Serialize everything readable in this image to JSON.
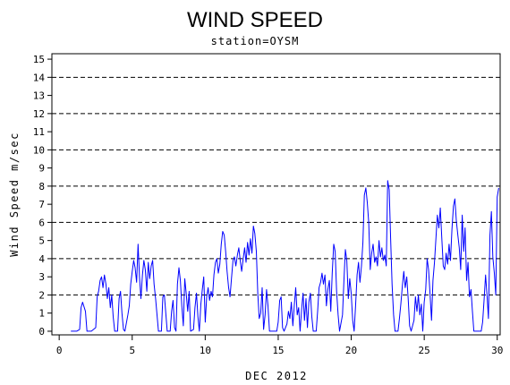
{
  "chart_data": {
    "type": "line",
    "title": "WIND SPEED",
    "subtitle": "station=OYSM",
    "xlabel": "DEC 2012",
    "ylabel": "Wind Speed m/sec",
    "xlim": [
      -0.5,
      30.2
    ],
    "ylim": [
      -0.2,
      15.3
    ],
    "x_ticks": [
      0,
      5,
      10,
      15,
      20,
      25,
      30
    ],
    "x_tick_labels": [
      "0",
      "5",
      "10",
      "15",
      "20",
      "25",
      "30"
    ],
    "y_ticks": [
      0,
      1,
      2,
      3,
      4,
      5,
      6,
      7,
      8,
      9,
      10,
      11,
      12,
      13,
      14,
      15
    ],
    "y_tick_labels": [
      "0",
      "1",
      "2",
      "3",
      "4",
      "5",
      "6",
      "7",
      "8",
      "9",
      "10",
      "11",
      "12",
      "13",
      "14",
      "15"
    ],
    "reference_lines": [
      2,
      4,
      6,
      8,
      10,
      12,
      14
    ],
    "grid": false,
    "line_color": "#0000ff",
    "series": [
      {
        "name": "",
        "points": [
          [
            0.8,
            0
          ],
          [
            1.2,
            0
          ],
          [
            1.4,
            0.1
          ],
          [
            1.5,
            1.3
          ],
          [
            1.6,
            1.6
          ],
          [
            1.8,
            1.1
          ],
          [
            1.9,
            0
          ],
          [
            2.2,
            0
          ],
          [
            2.5,
            0.2
          ],
          [
            2.6,
            1.9
          ],
          [
            2.7,
            2.2
          ],
          [
            2.8,
            2.8
          ],
          [
            2.9,
            3.0
          ],
          [
            3.0,
            2.4
          ],
          [
            3.1,
            3.1
          ],
          [
            3.2,
            2.6
          ],
          [
            3.3,
            1.8
          ],
          [
            3.4,
            2.4
          ],
          [
            3.5,
            1.3
          ],
          [
            3.6,
            2.0
          ],
          [
            3.7,
            0.8
          ],
          [
            3.8,
            0
          ],
          [
            4.0,
            0
          ],
          [
            4.1,
            1.8
          ],
          [
            4.2,
            2.2
          ],
          [
            4.3,
            1.0
          ],
          [
            4.4,
            0.1
          ],
          [
            4.5,
            0
          ],
          [
            4.7,
            0.9
          ],
          [
            4.8,
            1.4
          ],
          [
            4.9,
            2.6
          ],
          [
            5.0,
            3.3
          ],
          [
            5.1,
            3.9
          ],
          [
            5.2,
            3.5
          ],
          [
            5.3,
            2.7
          ],
          [
            5.4,
            4.8
          ],
          [
            5.5,
            3.0
          ],
          [
            5.6,
            1.8
          ],
          [
            5.7,
            3.1
          ],
          [
            5.8,
            3.9
          ],
          [
            5.9,
            3.4
          ],
          [
            6.0,
            2.2
          ],
          [
            6.1,
            3.8
          ],
          [
            6.2,
            2.9
          ],
          [
            6.3,
            3.6
          ],
          [
            6.4,
            3.9
          ],
          [
            6.5,
            2.6
          ],
          [
            6.6,
            1.8
          ],
          [
            6.7,
            0.9
          ],
          [
            6.8,
            0
          ],
          [
            7.0,
            0
          ],
          [
            7.1,
            1.9
          ],
          [
            7.2,
            2.0
          ],
          [
            7.3,
            1.0
          ],
          [
            7.4,
            0
          ],
          [
            7.6,
            0
          ],
          [
            7.7,
            1.1
          ],
          [
            7.8,
            1.7
          ],
          [
            7.9,
            0.2
          ],
          [
            8.0,
            0
          ],
          [
            8.1,
            2.6
          ],
          [
            8.2,
            3.5
          ],
          [
            8.3,
            2.8
          ],
          [
            8.4,
            1.4
          ],
          [
            8.5,
            0.3
          ],
          [
            8.6,
            2.9
          ],
          [
            8.7,
            2.1
          ],
          [
            8.8,
            1.1
          ],
          [
            8.9,
            2.2
          ],
          [
            9.0,
            0
          ],
          [
            9.2,
            0.1
          ],
          [
            9.3,
            1.3
          ],
          [
            9.4,
            2.1
          ],
          [
            9.5,
            0.8
          ],
          [
            9.6,
            0
          ],
          [
            9.7,
            1.5
          ],
          [
            9.8,
            2.3
          ],
          [
            9.9,
            3.0
          ],
          [
            10.0,
            0.5
          ],
          [
            10.1,
            1.9
          ],
          [
            10.2,
            2.4
          ],
          [
            10.3,
            1.7
          ],
          [
            10.4,
            2.2
          ],
          [
            10.5,
            1.9
          ],
          [
            10.6,
            3.1
          ],
          [
            10.7,
            3.8
          ],
          [
            10.8,
            4.0
          ],
          [
            10.9,
            3.2
          ],
          [
            11.0,
            3.7
          ],
          [
            11.1,
            4.8
          ],
          [
            11.2,
            5.5
          ],
          [
            11.3,
            5.3
          ],
          [
            11.4,
            4.4
          ],
          [
            11.5,
            3.3
          ],
          [
            11.6,
            2.4
          ],
          [
            11.7,
            1.9
          ],
          [
            11.8,
            2.9
          ],
          [
            11.9,
            3.9
          ],
          [
            12.0,
            4.1
          ],
          [
            12.1,
            3.6
          ],
          [
            12.2,
            4.2
          ],
          [
            12.3,
            4.6
          ],
          [
            12.4,
            3.9
          ],
          [
            12.5,
            3.3
          ],
          [
            12.6,
            4.0
          ],
          [
            12.7,
            4.6
          ],
          [
            12.8,
            3.8
          ],
          [
            12.9,
            4.9
          ],
          [
            13.0,
            4.2
          ],
          [
            13.1,
            5.1
          ],
          [
            13.2,
            4.3
          ],
          [
            13.3,
            5.8
          ],
          [
            13.4,
            5.4
          ],
          [
            13.5,
            4.4
          ],
          [
            13.6,
            2.1
          ],
          [
            13.7,
            0.7
          ],
          [
            13.8,
            1.0
          ],
          [
            13.9,
            2.4
          ],
          [
            14.0,
            0.1
          ],
          [
            14.1,
            0.9
          ],
          [
            14.2,
            2.3
          ],
          [
            14.3,
            1.4
          ],
          [
            14.4,
            0
          ],
          [
            14.9,
            0
          ],
          [
            15.0,
            0.5
          ],
          [
            15.1,
            1.7
          ],
          [
            15.2,
            1.9
          ],
          [
            15.3,
            0.2
          ],
          [
            15.4,
            0
          ],
          [
            15.6,
            0.4
          ],
          [
            15.7,
            1.1
          ],
          [
            15.8,
            0.7
          ],
          [
            15.9,
            1.6
          ],
          [
            16.0,
            0.3
          ],
          [
            16.1,
            1.4
          ],
          [
            16.2,
            2.4
          ],
          [
            16.3,
            0.9
          ],
          [
            16.4,
            1.3
          ],
          [
            16.5,
            0
          ],
          [
            16.6,
            1.2
          ],
          [
            16.7,
            2.1
          ],
          [
            16.8,
            0.6
          ],
          [
            16.9,
            1.8
          ],
          [
            17.0,
            0.2
          ],
          [
            17.1,
            1.6
          ],
          [
            17.2,
            2.1
          ],
          [
            17.3,
            0.8
          ],
          [
            17.4,
            0
          ],
          [
            17.6,
            0
          ],
          [
            17.7,
            1.1
          ],
          [
            17.8,
            2.4
          ],
          [
            17.9,
            2.7
          ],
          [
            18.0,
            3.2
          ],
          [
            18.1,
            2.6
          ],
          [
            18.2,
            3.1
          ],
          [
            18.3,
            1.4
          ],
          [
            18.4,
            2.3
          ],
          [
            18.5,
            2.8
          ],
          [
            18.6,
            1.1
          ],
          [
            18.7,
            3.2
          ],
          [
            18.8,
            4.8
          ],
          [
            18.9,
            4.4
          ],
          [
            19.0,
            2.2
          ],
          [
            19.1,
            0.9
          ],
          [
            19.2,
            0
          ],
          [
            19.4,
            0.9
          ],
          [
            19.5,
            2.8
          ],
          [
            19.6,
            4.5
          ],
          [
            19.7,
            3.9
          ],
          [
            19.8,
            1.8
          ],
          [
            19.9,
            2.9
          ],
          [
            20.0,
            2.1
          ],
          [
            20.1,
            0.6
          ],
          [
            20.2,
            0
          ],
          [
            20.3,
            1.4
          ],
          [
            20.4,
            3.1
          ],
          [
            20.5,
            3.8
          ],
          [
            20.6,
            2.7
          ],
          [
            20.7,
            3.6
          ],
          [
            20.8,
            4.9
          ],
          [
            20.9,
            7.5
          ],
          [
            21.0,
            7.9
          ],
          [
            21.1,
            7.1
          ],
          [
            21.2,
            6.0
          ],
          [
            21.3,
            3.4
          ],
          [
            21.4,
            4.3
          ],
          [
            21.5,
            4.8
          ],
          [
            21.6,
            3.8
          ],
          [
            21.7,
            4.1
          ],
          [
            21.8,
            3.6
          ],
          [
            21.9,
            5.0
          ],
          [
            22.0,
            4.1
          ],
          [
            22.1,
            4.6
          ],
          [
            22.2,
            3.9
          ],
          [
            22.3,
            4.2
          ],
          [
            22.4,
            3.6
          ],
          [
            22.5,
            8.3
          ],
          [
            22.6,
            7.8
          ],
          [
            22.7,
            5.1
          ],
          [
            22.8,
            2.6
          ],
          [
            22.9,
            0.9
          ],
          [
            23.0,
            0
          ],
          [
            23.2,
            0
          ],
          [
            23.3,
            0.7
          ],
          [
            23.4,
            1.5
          ],
          [
            23.5,
            2.5
          ],
          [
            23.6,
            3.3
          ],
          [
            23.7,
            2.4
          ],
          [
            23.8,
            3.0
          ],
          [
            23.9,
            1.8
          ],
          [
            24.0,
            0.3
          ],
          [
            24.1,
            0
          ],
          [
            24.3,
            0.6
          ],
          [
            24.4,
            1.9
          ],
          [
            24.5,
            1.1
          ],
          [
            24.6,
            2.0
          ],
          [
            24.7,
            0.9
          ],
          [
            24.8,
            1.5
          ],
          [
            24.9,
            0
          ],
          [
            25.0,
            1.6
          ],
          [
            25.1,
            2.3
          ],
          [
            25.2,
            4.0
          ],
          [
            25.3,
            3.4
          ],
          [
            25.4,
            2.0
          ],
          [
            25.5,
            0.6
          ],
          [
            25.6,
            2.8
          ],
          [
            25.7,
            3.8
          ],
          [
            25.8,
            5.1
          ],
          [
            25.9,
            6.4
          ],
          [
            26.0,
            5.7
          ],
          [
            26.1,
            6.8
          ],
          [
            26.2,
            5.2
          ],
          [
            26.3,
            3.6
          ],
          [
            26.4,
            3.4
          ],
          [
            26.5,
            4.3
          ],
          [
            26.6,
            3.7
          ],
          [
            26.7,
            4.8
          ],
          [
            26.8,
            3.9
          ],
          [
            26.9,
            5.6
          ],
          [
            27.0,
            6.9
          ],
          [
            27.1,
            7.3
          ],
          [
            27.2,
            6.1
          ],
          [
            27.3,
            5.3
          ],
          [
            27.4,
            4.6
          ],
          [
            27.5,
            3.4
          ],
          [
            27.6,
            6.4
          ],
          [
            27.7,
            4.4
          ],
          [
            27.8,
            5.7
          ],
          [
            27.9,
            2.8
          ],
          [
            28.0,
            3.8
          ],
          [
            28.1,
            1.9
          ],
          [
            28.2,
            2.3
          ],
          [
            28.3,
            1.1
          ],
          [
            28.4,
            0
          ],
          [
            28.9,
            0
          ],
          [
            29.0,
            0.5
          ],
          [
            29.1,
            1.7
          ],
          [
            29.2,
            3.1
          ],
          [
            29.3,
            2.0
          ],
          [
            29.4,
            0.7
          ],
          [
            29.5,
            5.3
          ],
          [
            29.6,
            6.6
          ],
          [
            29.7,
            4.1
          ],
          [
            29.8,
            3.2
          ],
          [
            29.9,
            2.0
          ],
          [
            30.0,
            7.4
          ],
          [
            30.1,
            7.9
          ]
        ]
      }
    ]
  }
}
